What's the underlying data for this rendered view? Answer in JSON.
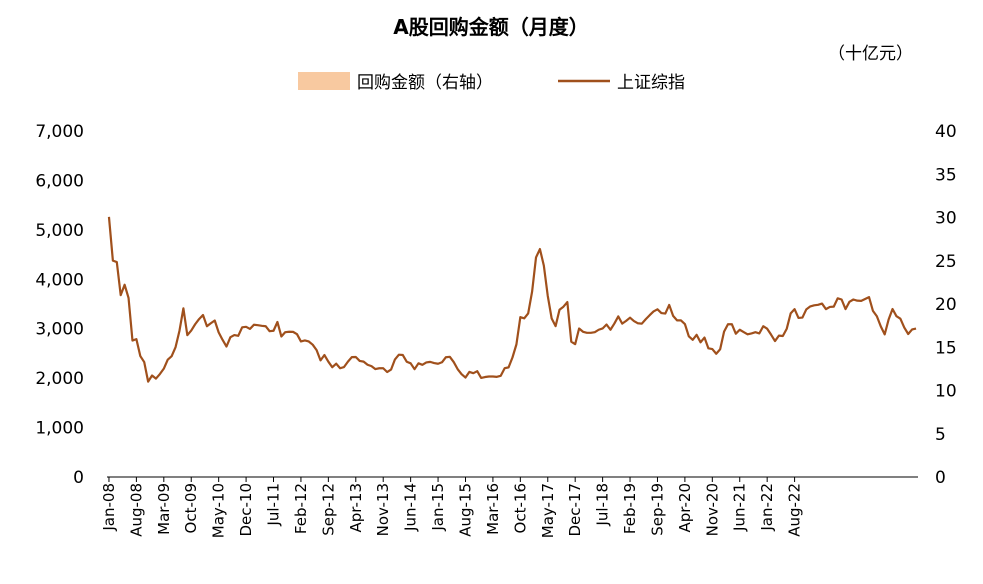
{
  "chart_data": {
    "type": "bar+line",
    "title": "A股回购金额（月度）",
    "unit_right": "（十亿元）",
    "colors": {
      "bar": "#F8C9A0",
      "line": "#A0501C",
      "axis": "#000000"
    },
    "legend": [
      {
        "label": "回购金额（右轴）",
        "kind": "bar"
      },
      {
        "label": "上证综指",
        "kind": "line"
      }
    ],
    "legend_position": "top-center",
    "grid": false,
    "y_left": {
      "range": [
        0,
        7000
      ],
      "ticks": [
        "0",
        "1,000",
        "2,000",
        "3,000",
        "4,000",
        "5,000",
        "6,000",
        "7,000"
      ]
    },
    "y_right": {
      "range": [
        0,
        40
      ],
      "ticks": [
        "0",
        "5",
        "10",
        "15",
        "20",
        "25",
        "30",
        "35",
        "40"
      ]
    },
    "x_ticks": [
      "Jan-08",
      "Aug-08",
      "Mar-09",
      "Oct-09",
      "May-10",
      "Dec-10",
      "Jul-11",
      "Feb-12",
      "Sep-12",
      "Apr-13",
      "Nov-13",
      "Jun-14",
      "Jan-15",
      "Aug-15",
      "Mar-16",
      "Oct-16",
      "May-17",
      "Dec-17",
      "Jul-18",
      "Feb-19",
      "Sep-19",
      "Apr-20",
      "Nov-20",
      "Jun-21",
      "Jan-22",
      "Aug-22"
    ],
    "x_start": "Jan-08",
    "x_end": "Nov-22",
    "series": [
      {
        "name": "上证综指",
        "axis": "left",
        "values": [
          5262,
          4377,
          4349,
          3679,
          3889,
          3622,
          2761,
          2789,
          2447,
          2325,
          1930,
          2053,
          1991,
          2083,
          2192,
          2374,
          2444,
          2627,
          2959,
          3412,
          2870,
          2963,
          3090,
          3195,
          3277,
          3051,
          3110,
          3166,
          2926,
          2775,
          2640,
          2828,
          2872,
          2856,
          3029,
          3039,
          2996,
          3081,
          3071,
          3059,
          3050,
          2950,
          2959,
          3136,
          2843,
          2930,
          2939,
          2936,
          2889,
          2743,
          2763,
          2742,
          2677,
          2567,
          2360,
          2468,
          2333,
          2221,
          2293,
          2200,
          2225,
          2334,
          2426,
          2428,
          2348,
          2334,
          2271,
          2243,
          2183,
          2200,
          2200,
          2124,
          2173,
          2379,
          2474,
          2468,
          2332,
          2300,
          2181,
          2300,
          2270,
          2317,
          2329,
          2305,
          2291,
          2321,
          2423,
          2432,
          2325,
          2182,
          2080,
          2012,
          2126,
          2100,
          2141,
          2004,
          2023,
          2033,
          2033,
          2026,
          2048,
          2201,
          2218,
          2420,
          2683,
          3234,
          3210,
          3310,
          3748,
          4442,
          4611,
          4277,
          3664,
          3206,
          3053,
          3383,
          3445,
          3539,
          2738,
          2688,
          3004,
          2938,
          2917,
          2917,
          2930,
          2979,
          3005,
          3085,
          2979,
          3104,
          3250,
          3103,
          3159,
          3223,
          3155,
          3110,
          3102,
          3192,
          3273,
          3349,
          3393,
          3317,
          3307,
          3481,
          3259,
          3169,
          3168,
          3095,
          2847,
          2776,
          2876,
          2725,
          2821,
          2603,
          2588,
          2494,
          2584,
          2941,
          3091,
          3090,
          2899,
          2979,
          2932,
          2886,
          2905,
          2929,
          2905,
          3050,
          3000,
          2880,
          2750,
          2860,
          2852,
          3000,
          3310,
          3396,
          3218,
          3225,
          3392,
          3451,
          3473,
          3483,
          3509,
          3396,
          3441,
          3447,
          3615,
          3591,
          3397,
          3544,
          3591,
          3568,
          3563,
          3601,
          3639,
          3361,
          3252,
          3047,
          2886,
          3186,
          3399,
          3253,
          3202,
          3024,
          2893,
          2985,
          3004
        ]
      },
      {
        "name": "回购金额（右轴）",
        "axis": "right",
        "values": [
          0,
          0,
          0,
          0,
          0,
          0,
          0,
          0,
          0,
          0,
          0,
          0,
          0,
          0,
          0,
          0,
          0,
          0,
          0,
          0,
          0,
          0,
          0,
          0,
          0,
          0,
          0,
          0,
          0,
          0,
          0,
          0,
          0,
          0,
          0,
          0,
          0,
          0,
          0,
          0,
          0,
          0,
          0,
          0,
          0,
          0,
          0,
          0,
          0,
          0,
          0,
          0,
          0,
          0,
          0,
          0,
          0,
          0,
          0,
          0,
          0,
          0,
          0,
          0,
          0,
          0,
          0,
          0,
          0,
          0,
          0,
          0,
          0,
          0,
          0,
          0,
          0,
          0,
          0,
          0,
          0,
          0,
          0,
          0,
          0,
          0,
          0,
          0,
          0,
          0,
          0,
          0,
          0,
          0,
          0,
          0,
          0,
          0,
          0,
          0,
          0,
          0,
          0,
          0,
          0,
          0,
          0,
          0,
          0,
          0,
          0,
          0,
          0,
          0,
          0,
          0,
          0,
          0,
          0,
          0,
          0,
          0,
          0,
          0,
          0,
          0,
          0,
          0,
          0,
          0,
          0,
          0,
          0,
          0,
          0,
          0,
          0,
          0,
          0,
          0,
          0,
          0,
          0,
          0,
          0,
          0,
          0,
          0,
          0,
          0,
          0,
          0,
          0,
          0,
          0,
          0,
          0,
          0,
          0,
          0,
          0,
          0,
          0,
          0,
          0,
          0,
          0,
          0,
          0,
          0,
          0,
          0,
          0,
          0,
          0,
          0,
          0,
          0,
          0,
          0,
          0,
          0,
          0,
          0,
          0,
          0,
          0,
          0,
          0,
          0,
          0,
          0,
          0,
          0,
          0,
          0,
          0,
          0,
          0,
          0,
          0,
          0,
          0,
          0,
          0,
          0,
          0,
          0,
          0,
          0,
          0,
          0,
          0,
          0,
          0,
          0,
          0,
          0,
          0,
          0,
          0,
          0,
          0,
          0,
          0,
          0,
          0,
          0,
          0,
          0,
          0,
          0,
          0,
          0,
          0,
          0,
          0,
          0,
          0,
          0,
          0,
          0,
          0,
          0,
          0,
          0,
          0,
          0,
          0,
          0,
          0,
          0,
          0,
          0,
          0,
          0,
          0,
          0,
          0,
          0,
          0,
          0,
          0,
          0,
          0,
          0,
          0,
          0,
          0,
          0,
          0,
          0,
          0
        ]
      }
    ]
  }
}
